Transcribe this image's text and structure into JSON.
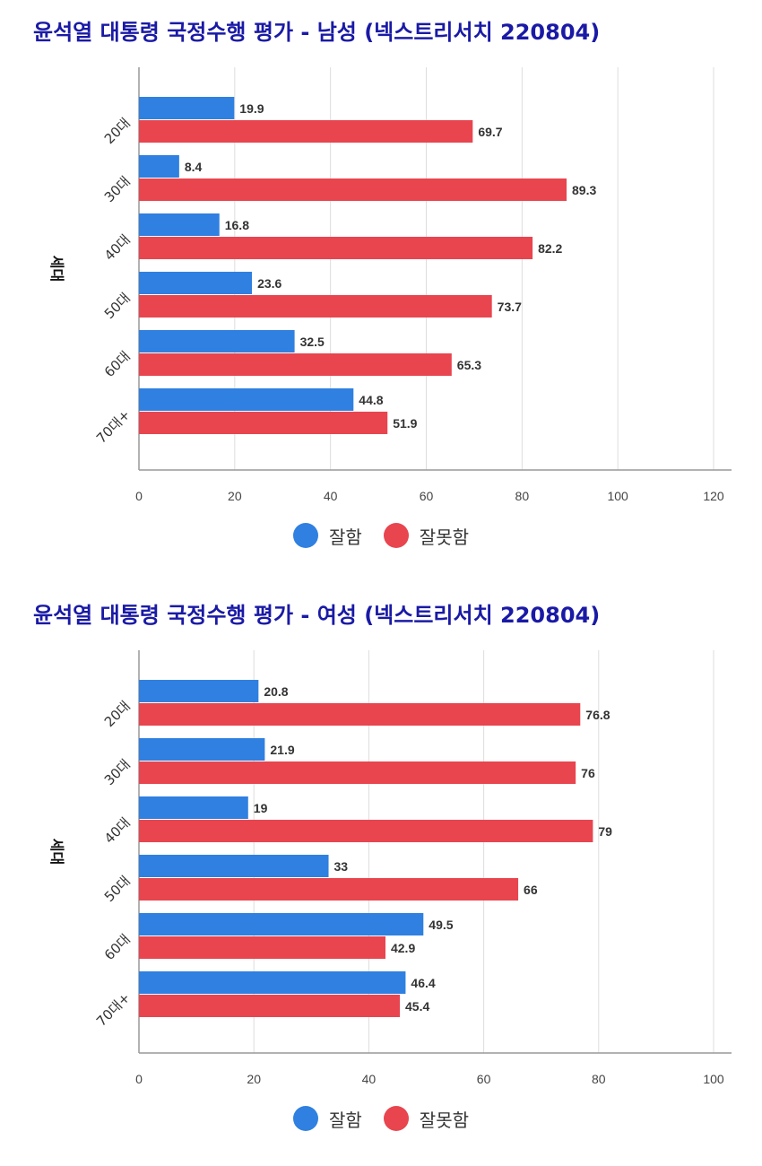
{
  "chart_data": [
    {
      "type": "bar",
      "orientation": "horizontal",
      "title": "윤석열 대통령 국정수행 평가 - 남성 (넥스트리서치 220804)",
      "ylabel": "세대",
      "xlabel": "",
      "xlim": [
        0,
        120
      ],
      "xticks": [
        "0",
        "20",
        "40",
        "60",
        "80",
        "100",
        "120"
      ],
      "grid": true,
      "legend": "bottom",
      "categories": [
        "20대",
        "30대",
        "40대",
        "50대",
        "60대",
        "70대+"
      ],
      "series": [
        {
          "name": "잘함",
          "color": "#2f80e0",
          "values": [
            19.9,
            8.4,
            16.8,
            23.6,
            32.5,
            44.8
          ],
          "labels": [
            "19.9",
            "8.4",
            "16.8",
            "23.6",
            "32.5",
            "44.8"
          ]
        },
        {
          "name": "잘못함",
          "color": "#e8454f",
          "values": [
            69.7,
            89.3,
            82.2,
            73.7,
            65.3,
            51.9
          ],
          "labels": [
            "69.7",
            "89.3",
            "82.2",
            "73.7",
            "65.3",
            "51.9"
          ]
        }
      ]
    },
    {
      "type": "bar",
      "orientation": "horizontal",
      "title": "윤석열 대통령 국정수행 평가 - 여성 (넥스트리서치 220804)",
      "ylabel": "세대",
      "xlabel": "",
      "xlim": [
        0,
        100
      ],
      "xticks": [
        "0",
        "20",
        "40",
        "60",
        "80",
        "100"
      ],
      "grid": true,
      "legend": "bottom",
      "categories": [
        "20대",
        "30대",
        "40대",
        "50대",
        "60대",
        "70대+"
      ],
      "series": [
        {
          "name": "잘함",
          "color": "#2f80e0",
          "values": [
            20.8,
            21.9,
            19,
            33,
            49.5,
            46.4
          ],
          "labels": [
            "20.8",
            "21.9",
            "19",
            "33",
            "49.5",
            "46.4"
          ]
        },
        {
          "name": "잘못함",
          "color": "#e8454f",
          "values": [
            76.8,
            76,
            79,
            66,
            42.9,
            45.4
          ],
          "labels": [
            "76.8",
            "76",
            "79",
            "66",
            "42.9",
            "45.4"
          ]
        }
      ]
    }
  ]
}
